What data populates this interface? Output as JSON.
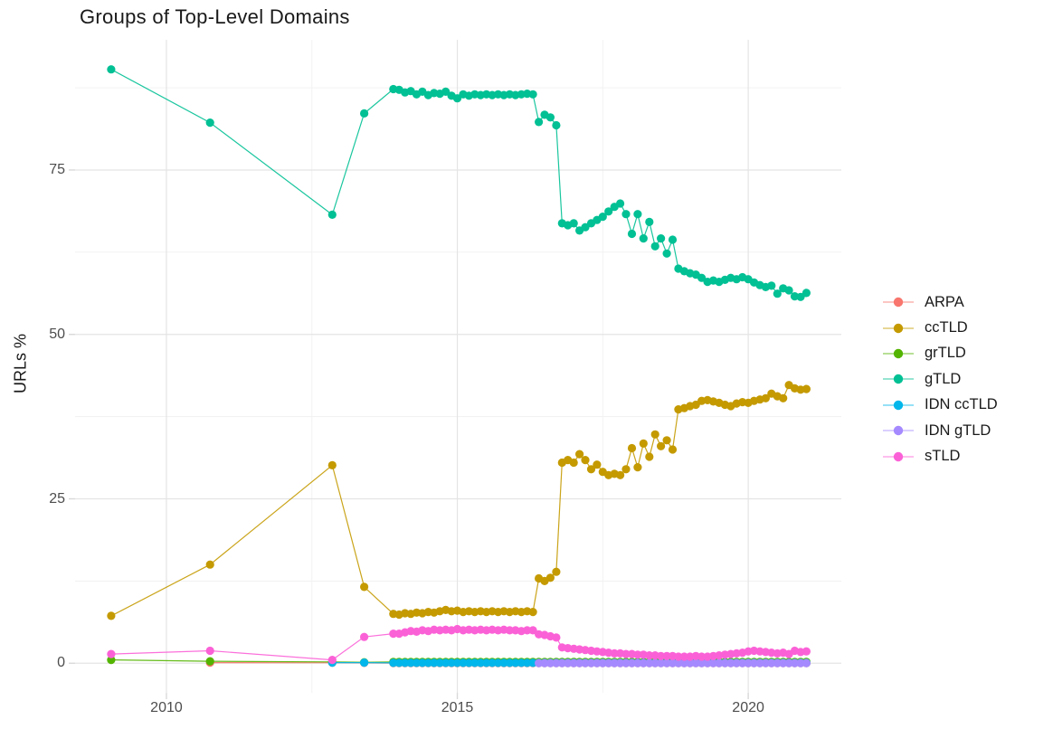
{
  "chart_data": {
    "type": "line",
    "title": "Groups of Top-Level Domains",
    "xlabel": "",
    "ylabel": "URLs %",
    "legend_position": "right",
    "grid": "major+minor",
    "background": "#ffffff",
    "axis": {
      "tick_label_color": "#4d4d4d",
      "title_color": "#1a1a1a",
      "grid_major_color": "#e4e4e4",
      "grid_minor_color": "#f1f1f1",
      "tick_mark_color": "#d9d9d9"
    },
    "xlim_years": [
      2008.43,
      2021.6
    ],
    "ylim": [
      -4.5,
      94.8
    ],
    "x_ticks": [
      {
        "label": "2010",
        "year": 2010
      },
      {
        "label": "2015",
        "year": 2015
      },
      {
        "label": "2020",
        "year": 2020
      }
    ],
    "y_ticks": [
      {
        "label": "0",
        "value": 0
      },
      {
        "label": "25",
        "value": 25
      },
      {
        "label": "50",
        "value": 50
      },
      {
        "label": "75",
        "value": 75
      }
    ],
    "x_minor_gridlines_years": [
      2012.5,
      2017.5
    ],
    "y_minor_gridlines": [
      12.5,
      37.5,
      62.5,
      87.5
    ],
    "series": [
      {
        "name": "ARPA",
        "color": "#F8766D",
        "early_points": [
          [
            2010.75,
            0.1
          ],
          [
            2012.85,
            0.08
          ],
          [
            2013.4,
            0.05
          ]
        ],
        "dense": {
          "from": 2013.9,
          "to": 2021.0,
          "step": 0.1,
          "value": 0.03
        }
      },
      {
        "name": "ccTLD",
        "color": "#C49A00",
        "early_points": [
          [
            2009.05,
            7.2
          ],
          [
            2010.75,
            15.0
          ],
          [
            2012.85,
            30.1
          ],
          [
            2013.4,
            11.6
          ]
        ],
        "dense_values": {
          "from": 2013.9,
          "step": 0.1,
          "values": [
            7.5,
            7.4,
            7.6,
            7.5,
            7.7,
            7.6,
            7.8,
            7.7,
            7.9,
            8.1,
            7.9,
            8.0,
            7.8,
            7.9,
            7.8,
            7.9,
            7.8,
            7.9,
            7.8,
            7.9,
            7.8,
            7.9,
            7.8,
            7.9,
            7.8,
            12.9,
            12.5,
            13.0,
            13.9,
            30.5,
            30.9,
            30.5,
            31.8,
            30.9,
            29.5,
            30.2,
            29.1,
            28.6,
            28.8,
            28.6,
            29.5,
            32.7,
            29.8,
            33.4,
            31.4,
            34.8,
            33.0,
            33.9,
            32.5,
            38.6,
            38.8,
            39.1,
            39.3,
            39.9,
            40.0,
            39.8,
            39.6,
            39.3,
            39.1,
            39.5,
            39.7,
            39.6,
            39.9,
            40.1,
            40.3,
            41.0,
            40.6,
            40.3,
            42.3,
            41.8,
            41.6,
            41.7
          ]
        }
      },
      {
        "name": "grTLD",
        "color": "#53B400",
        "early_points": [
          [
            2009.05,
            0.5
          ],
          [
            2010.75,
            0.3
          ],
          [
            2012.85,
            0.2
          ],
          [
            2013.4,
            0.15
          ]
        ],
        "dense": {
          "from": 2013.9,
          "to": 2021.0,
          "step": 0.1,
          "value": 0.2
        }
      },
      {
        "name": "gTLD",
        "color": "#00C094",
        "early_points": [
          [
            2009.05,
            90.3
          ],
          [
            2010.75,
            82.2
          ],
          [
            2012.85,
            68.2
          ],
          [
            2013.4,
            83.6
          ]
        ],
        "dense_values": {
          "from": 2013.9,
          "step": 0.1,
          "values": [
            87.3,
            87.2,
            86.8,
            87.0,
            86.5,
            86.9,
            86.4,
            86.7,
            86.6,
            86.9,
            86.3,
            85.9,
            86.5,
            86.3,
            86.5,
            86.4,
            86.5,
            86.4,
            86.5,
            86.4,
            86.5,
            86.4,
            86.5,
            86.6,
            86.5,
            82.3,
            83.4,
            83.0,
            81.8,
            66.9,
            66.6,
            66.9,
            65.8,
            66.3,
            66.9,
            67.4,
            67.9,
            68.7,
            69.4,
            69.9,
            68.3,
            65.3,
            68.3,
            64.6,
            67.1,
            63.4,
            64.6,
            62.3,
            64.4,
            60.0,
            59.6,
            59.3,
            59.1,
            58.6,
            58.0,
            58.2,
            58.0,
            58.3,
            58.6,
            58.4,
            58.7,
            58.4,
            57.9,
            57.5,
            57.2,
            57.4,
            56.2,
            57.0,
            56.7,
            55.8,
            55.7,
            56.3
          ]
        }
      },
      {
        "name": "IDN ccTLD",
        "color": "#00B6EB",
        "early_points": [
          [
            2012.85,
            0.1
          ],
          [
            2013.4,
            0.1
          ]
        ],
        "dense": {
          "from": 2013.9,
          "to": 2021.0,
          "step": 0.1,
          "value": 0.05
        }
      },
      {
        "name": "IDN gTLD",
        "color": "#A58AFF",
        "early_points": [],
        "dense": {
          "from": 2016.4,
          "to": 2021.0,
          "step": 0.1,
          "value": 0.02
        }
      },
      {
        "name": "sTLD",
        "color": "#FB61D7",
        "early_points": [
          [
            2009.05,
            1.4
          ],
          [
            2010.75,
            1.9
          ],
          [
            2012.85,
            0.5
          ],
          [
            2013.4,
            4.0
          ]
        ],
        "dense_values": {
          "from": 2013.9,
          "step": 0.1,
          "values": [
            4.5,
            4.5,
            4.7,
            4.9,
            4.8,
            5.0,
            4.9,
            5.1,
            5.0,
            5.1,
            5.0,
            5.2,
            5.0,
            5.1,
            5.0,
            5.1,
            5.0,
            5.1,
            5.0,
            5.1,
            5.0,
            5.0,
            4.9,
            5.0,
            5.0,
            4.4,
            4.3,
            4.1,
            3.9,
            2.4,
            2.3,
            2.2,
            2.1,
            2.0,
            1.9,
            1.8,
            1.7,
            1.6,
            1.5,
            1.5,
            1.4,
            1.4,
            1.3,
            1.3,
            1.2,
            1.2,
            1.1,
            1.1,
            1.1,
            1.0,
            1.0,
            1.0,
            1.1,
            1.0,
            1.0,
            1.1,
            1.2,
            1.3,
            1.4,
            1.5,
            1.6,
            1.8,
            1.9,
            1.8,
            1.7,
            1.6,
            1.5,
            1.6,
            1.4,
            1.9,
            1.7,
            1.8
          ]
        }
      }
    ],
    "point_radius": 4.6,
    "line_width": 1.2
  }
}
